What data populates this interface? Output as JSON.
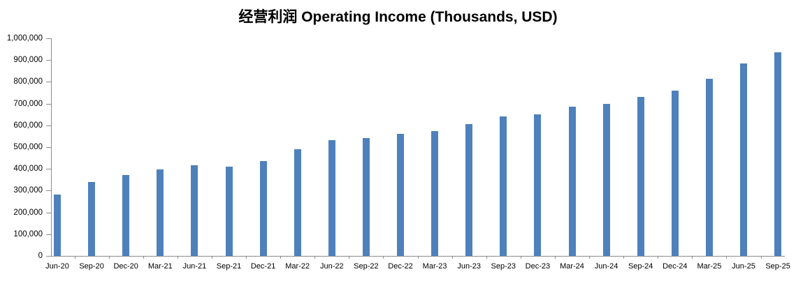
{
  "chart_data": {
    "type": "bar",
    "title": "经营利润 Operating Income (Thousands, USD)",
    "categories": [
      "Jun-20",
      "Sep-20",
      "Dec-20",
      "Mar-21",
      "Jun-21",
      "Sep-21",
      "Dec-21",
      "Mar-22",
      "Jun-22",
      "Sep-22",
      "Dec-22",
      "Mar-23",
      "Jun-23",
      "Sep-23",
      "Dec-23",
      "Mar-24",
      "Jun-24",
      "Sep-24",
      "Dec-24",
      "Mar-25",
      "Jun-25",
      "Sep-25"
    ],
    "values": [
      282000,
      339000,
      372000,
      397000,
      416000,
      411000,
      437000,
      489000,
      532000,
      541000,
      560000,
      573000,
      607000,
      640000,
      651000,
      687000,
      700000,
      731000,
      760000,
      813000,
      884000,
      935000
    ],
    "xlabel": "",
    "ylabel": "",
    "ylim": [
      0,
      1000000
    ],
    "ytick_step": 100000,
    "ytick_labels": [
      "0",
      "100,000",
      "200,000",
      "300,000",
      "400,000",
      "500,000",
      "600,000",
      "700,000",
      "800,000",
      "900,000",
      "1,000,000"
    ],
    "bar_color": "#4e81bc",
    "axis_color": "#8c8c8c",
    "grid": false,
    "legend": false,
    "legend_position": "none"
  }
}
